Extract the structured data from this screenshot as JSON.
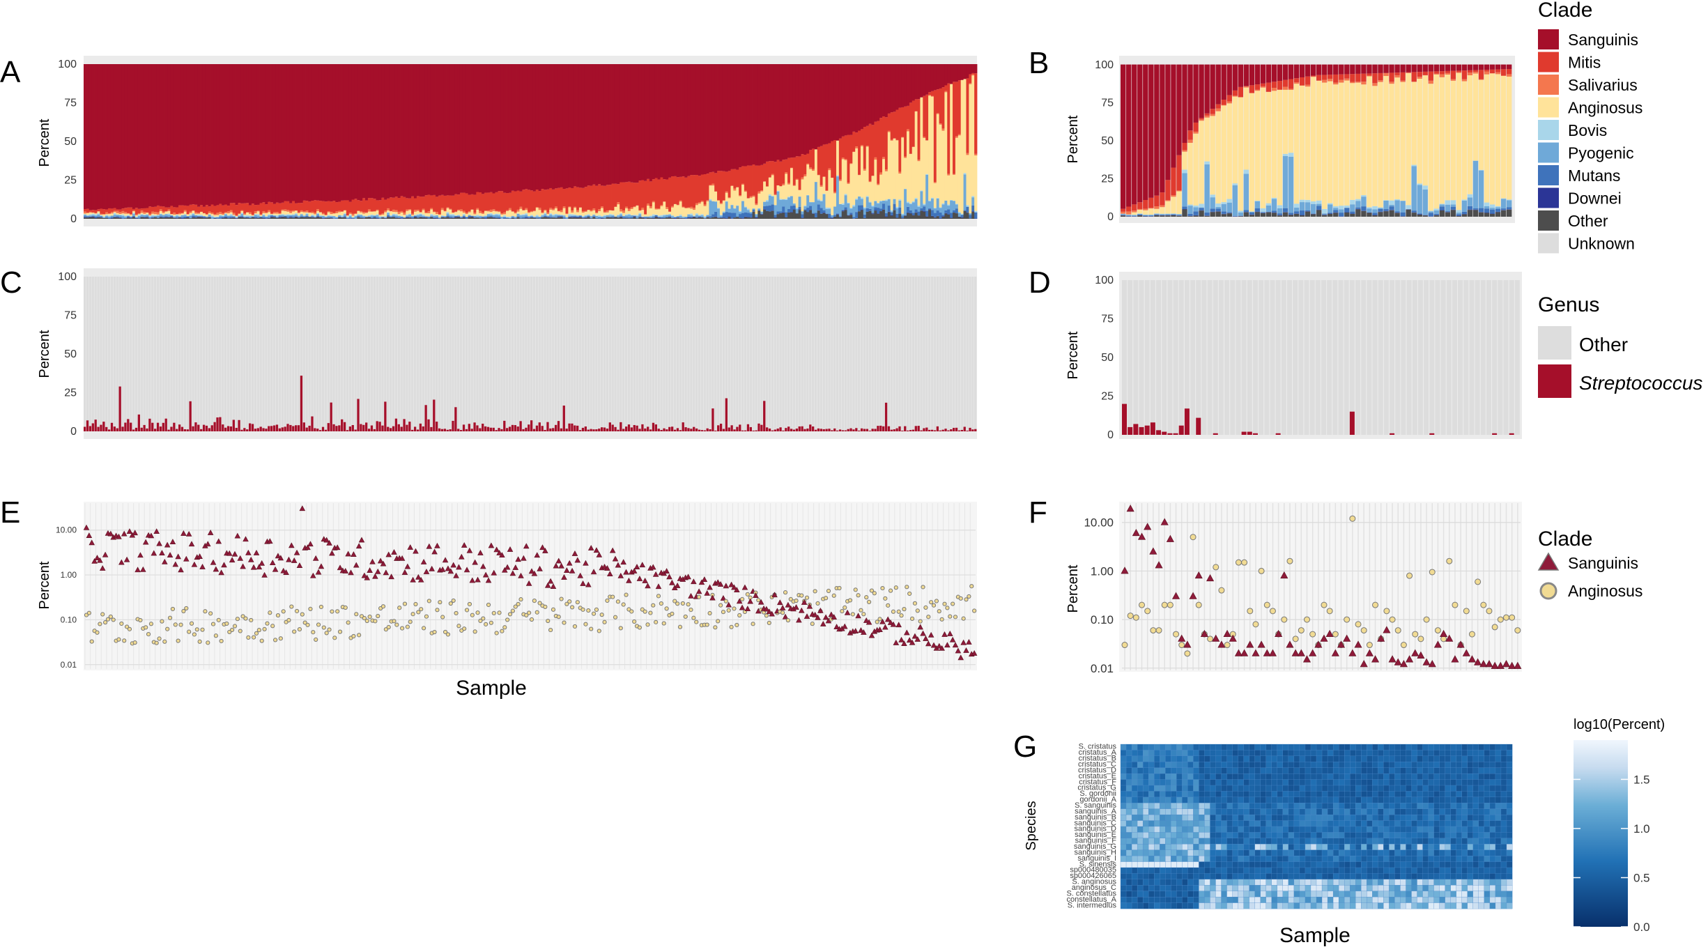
{
  "figure": {
    "panel_letters": [
      "A",
      "B",
      "C",
      "D",
      "E",
      "F",
      "G"
    ]
  },
  "legends": {
    "clade_bar": {
      "title": "Clade",
      "items": [
        {
          "label": "Sanguinis",
          "color": "#A50F2A"
        },
        {
          "label": "Mitis",
          "color": "#E03A2E"
        },
        {
          "label": "Salivarius",
          "color": "#F4774E"
        },
        {
          "label": "Anginosus",
          "color": "#FFE39A"
        },
        {
          "label": "Bovis",
          "color": "#A9D6EA"
        },
        {
          "label": "Pyogenic",
          "color": "#6FA9D8"
        },
        {
          "label": "Mutans",
          "color": "#3F73BB"
        },
        {
          "label": "Downei",
          "color": "#2B3596"
        },
        {
          "label": "Other",
          "color": "#4D4D4D"
        },
        {
          "label": "Unknown",
          "color": "#DDDDDD"
        }
      ]
    },
    "genus": {
      "title": "Genus",
      "items": [
        {
          "label": "Other",
          "color": "#DDDDDD"
        },
        {
          "label": "Streptococcus",
          "color": "#A50F2A"
        }
      ]
    },
    "clade_points": {
      "title": "Clade",
      "items": [
        {
          "label": "Sanguinis",
          "shape": "triangle",
          "color": "#8E1B3A"
        },
        {
          "label": "Anginosus",
          "shape": "circle",
          "color": "#F1DB93"
        }
      ]
    },
    "heatmap": {
      "title": "log10(Percent)",
      "ticks": [
        "1.5",
        "1.0",
        "0.5",
        "0.0"
      ],
      "range": [
        0.0,
        1.9
      ],
      "colors": [
        "#08306B",
        "#2171B5",
        "#6BAED6",
        "#C6DBEF",
        "#F0F6FD"
      ]
    }
  },
  "chart_data": [
    {
      "panel": "A",
      "type": "bar",
      "stacked": true,
      "ylabel": "Percent",
      "y_ticks": [
        "0",
        "25",
        "50",
        "75",
        "100"
      ],
      "ylim": [
        0,
        100
      ],
      "n_samples": 330,
      "series_order": [
        "Other",
        "Downei",
        "Mutans",
        "Pyogenic",
        "Bovis",
        "Anginosus",
        "Salivarius",
        "Mitis",
        "Sanguinis"
      ],
      "profile_points": {
        "sample_fraction": [
          0.0,
          0.3,
          0.55,
          0.7,
          0.8,
          0.88,
          0.95,
          1.0
        ],
        "sanguinis_top_boundary_percent": [
          6,
          12,
          20,
          29,
          40,
          60,
          82,
          94
        ],
        "anginosus_peak_percent": [
          1,
          2,
          4,
          8,
          15,
          30,
          55,
          75
        ]
      }
    },
    {
      "panel": "B",
      "type": "bar",
      "stacked": true,
      "ylabel": "Percent",
      "y_ticks": [
        "0",
        "25",
        "50",
        "75",
        "100"
      ],
      "ylim": [
        0,
        100
      ],
      "n_samples": 70,
      "profile_points": {
        "sample_fraction": [
          0.0,
          0.1,
          0.18,
          0.3,
          0.5,
          1.0
        ],
        "sanguinis_top_boundary_percent": [
          5,
          15,
          60,
          85,
          93,
          97
        ],
        "anginosus_percent_range": [
          1,
          88
        ]
      }
    },
    {
      "panel": "C",
      "type": "bar",
      "stacked": true,
      "ylabel": "Percent",
      "y_ticks": [
        "0",
        "25",
        "50",
        "75",
        "100"
      ],
      "ylim": [
        0,
        100
      ],
      "n_samples": 330,
      "series": [
        {
          "name": "Streptococcus",
          "typical_range": [
            1,
            12
          ],
          "max": 36
        },
        {
          "name": "Other",
          "note_value": "remainder to 100"
        }
      ]
    },
    {
      "panel": "D",
      "type": "bar",
      "stacked": true,
      "ylabel": "Percent",
      "y_ticks": [
        "0",
        "25",
        "50",
        "75",
        "100"
      ],
      "ylim": [
        0,
        100
      ],
      "n_samples": 70,
      "series": [
        {
          "name": "Streptococcus",
          "values": [
            20,
            5,
            7,
            5,
            6,
            8,
            3,
            2,
            1,
            1,
            6,
            17,
            0,
            11,
            0,
            0,
            1,
            0,
            0,
            0,
            0,
            2,
            2,
            1,
            0,
            0,
            0,
            1,
            0,
            0,
            0,
            0,
            0,
            0,
            0,
            0,
            0,
            0,
            0,
            0,
            15,
            0,
            0,
            0,
            0,
            0,
            0,
            1,
            0,
            0,
            0,
            0,
            0,
            0,
            1,
            0,
            0,
            0,
            0,
            0,
            0,
            0,
            0,
            0,
            0,
            1,
            0,
            0,
            1,
            0
          ]
        },
        {
          "name": "Other",
          "note_value": "remainder to 100"
        }
      ]
    },
    {
      "panel": "E",
      "type": "scatter",
      "ylabel": "Percent",
      "xlabel": "Sample",
      "y_scale": "log10",
      "y_ticks": [
        "0.01",
        "0.10",
        "1.00",
        "10.00"
      ],
      "ylim": [
        0.01,
        40
      ],
      "n_samples": 330,
      "series": [
        {
          "name": "Sanguinis",
          "shape": "triangle",
          "range_percent": [
            0.012,
            30
          ]
        },
        {
          "name": "Anginosus",
          "shape": "circle",
          "range_percent": [
            0.01,
            3
          ]
        }
      ]
    },
    {
      "panel": "F",
      "type": "scatter",
      "ylabel": "Percent",
      "y_scale": "log10",
      "y_ticks": [
        "0.01",
        "0.10",
        "1.00",
        "10.00"
      ],
      "ylim": [
        0.01,
        25
      ],
      "n_samples": 70,
      "series": [
        {
          "name": "Sanguinis",
          "shape": "triangle",
          "values": [
            1.0,
            19,
            6,
            5,
            8,
            2.5,
            1.3,
            10,
            4.5,
            0.3,
            0.04,
            0.03,
            0.3,
            0.8,
            0.05,
            0.7,
            0.04,
            0.03,
            0.05,
            0.04,
            0.02,
            0.02,
            0.03,
            0.02,
            0.03,
            0.02,
            0.02,
            0.05,
            0.8,
            0.03,
            0.02,
            0.02,
            0.015,
            0.02,
            0.03,
            0.04,
            0.05,
            0.02,
            0.03,
            0.04,
            0.02,
            0.03,
            0.012,
            0.02,
            0.015,
            0.04,
            0.06,
            0.015,
            0.013,
            0.012,
            0.015,
            0.02,
            0.018,
            0.013,
            0.012,
            0.03,
            0.05,
            0.04,
            0.015,
            0.03,
            0.02,
            0.015,
            0.013,
            0.012,
            0.012,
            0.011,
            0.011,
            0.012,
            0.011,
            0.011
          ]
        },
        {
          "name": "Anginosus",
          "values": [
            0.03,
            0.12,
            0.11,
            0.2,
            0.15,
            0.06,
            0.06,
            0.2,
            0.2,
            0.05,
            0.03,
            0.02,
            5,
            0.2,
            0.05,
            0.04,
            1.2,
            0.4,
            0.03,
            0.05,
            1.5,
            1.5,
            0.15,
            0.08,
            1.0,
            0.2,
            0.15,
            0.05,
            0.1,
            1.6,
            0.04,
            0.06,
            0.1,
            0.05,
            0.03,
            0.2,
            0.15,
            0.05,
            0.03,
            0.1,
            12,
            0.08,
            0.06,
            0.03,
            0.2,
            0.04,
            0.15,
            0.1,
            0.06,
            0.03,
            0.8,
            0.05,
            0.04,
            0.1,
            0.95,
            0.06,
            0.04,
            1.6,
            0.2,
            0.03,
            0.15,
            0.05,
            0.6,
            0.2,
            0.15,
            0.07,
            0.1,
            0.11,
            0.11,
            0.06
          ]
        }
      ]
    },
    {
      "panel": "G",
      "type": "heatmap",
      "xlabel": "Sample",
      "ylabel": "Species",
      "rows": [
        "S. cristatus",
        "cristatus_A",
        "cristatus_B",
        "cristatus_C",
        "cristatus_D",
        "cristatus_E",
        "cristatus_F",
        "cristatus_G",
        "S. gordonii",
        "gordonii_A",
        "S. sanguinis",
        "sanguinis_A",
        "sanguinis_B",
        "sanguinis_C",
        "sanguinis_D",
        "sanguinis_E",
        "sanguinis_F",
        "sanguinis_G",
        "sanguinis_H",
        "sanguinis_I",
        "S. sinensis",
        "sp000480035",
        "sp000426065",
        "S. anginosus",
        "anginosus_C",
        "S. constellatus",
        "constellatus_A",
        "S. intermedius"
      ],
      "n_columns": 70,
      "value_range": [
        0.0,
        1.9
      ]
    }
  ]
}
